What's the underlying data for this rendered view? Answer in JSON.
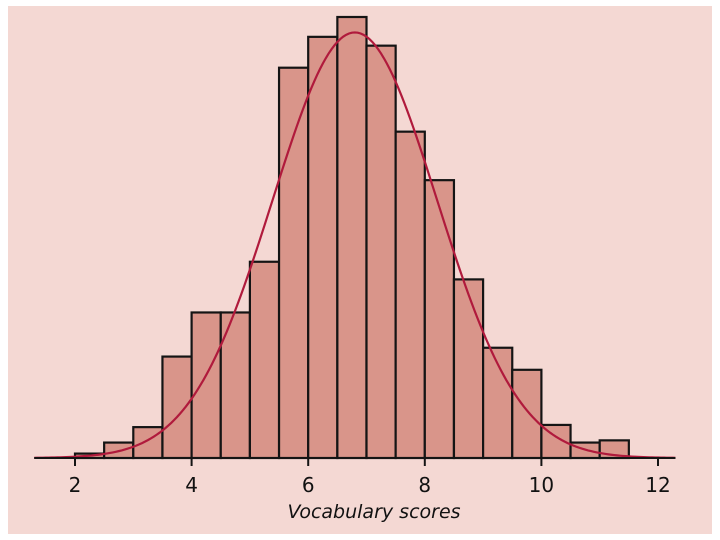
{
  "chart_data": {
    "type": "bar",
    "xlabel": "Vocabulary scores",
    "ylabel": "",
    "title": "",
    "x_ticks": [
      2,
      4,
      6,
      8,
      10,
      12
    ],
    "xlim": [
      1.3,
      12.3
    ],
    "ylim": [
      0,
      0.2
    ],
    "grid": false,
    "bins": [
      {
        "start": 2.0,
        "end": 2.5,
        "value": 0.002
      },
      {
        "start": 2.5,
        "end": 3.0,
        "value": 0.007
      },
      {
        "start": 3.0,
        "end": 3.5,
        "value": 0.014
      },
      {
        "start": 3.5,
        "end": 4.0,
        "value": 0.046
      },
      {
        "start": 4.0,
        "end": 4.5,
        "value": 0.066
      },
      {
        "start": 4.5,
        "end": 5.0,
        "value": 0.066
      },
      {
        "start": 5.0,
        "end": 5.5,
        "value": 0.089
      },
      {
        "start": 5.5,
        "end": 6.0,
        "value": 0.177
      },
      {
        "start": 6.0,
        "end": 6.5,
        "value": 0.191
      },
      {
        "start": 6.5,
        "end": 7.0,
        "value": 0.2
      },
      {
        "start": 7.0,
        "end": 7.5,
        "value": 0.187
      },
      {
        "start": 7.5,
        "end": 8.0,
        "value": 0.148
      },
      {
        "start": 8.0,
        "end": 8.5,
        "value": 0.126
      },
      {
        "start": 8.5,
        "end": 9.0,
        "value": 0.081
      },
      {
        "start": 9.0,
        "end": 9.5,
        "value": 0.05
      },
      {
        "start": 9.5,
        "end": 10.0,
        "value": 0.04
      },
      {
        "start": 10.0,
        "end": 10.5,
        "value": 0.015
      },
      {
        "start": 10.5,
        "end": 11.0,
        "value": 0.007
      },
      {
        "start": 11.0,
        "end": 11.5,
        "value": 0.008
      }
    ],
    "curve": {
      "type": "normal",
      "mean": 6.8,
      "sd": 1.41,
      "x_range": [
        1.3,
        12.3
      ]
    },
    "colors": {
      "bar_fill": "#d9958a",
      "bar_stroke": "#141414",
      "curve": "#b01a3c",
      "background": "#f4d8d3",
      "axis": "#141414"
    }
  }
}
